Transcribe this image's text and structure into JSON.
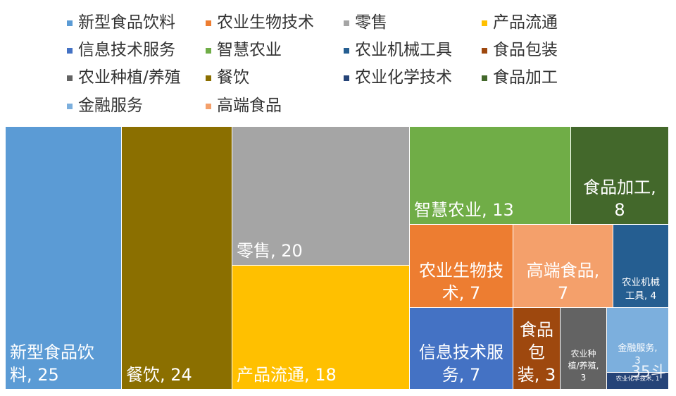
{
  "chart_data": {
    "type": "treemap",
    "legend_position": "top",
    "items": [
      {
        "name": "新型食品饮料",
        "value": 25,
        "color": "#5B9BD5",
        "label_lines": [
          "新型食品饮",
          "料, 25"
        ]
      },
      {
        "name": "餐饮",
        "value": 24,
        "color": "#8B6F00",
        "label_lines": [
          "餐饮, 24"
        ]
      },
      {
        "name": "零售",
        "value": 20,
        "color": "#A5A5A5",
        "label_lines": [
          "零售, 20"
        ]
      },
      {
        "name": "产品流通",
        "value": 18,
        "color": "#FFC000",
        "label_lines": [
          "产品流通, 18"
        ]
      },
      {
        "name": "智慧农业",
        "value": 13,
        "color": "#70AD47",
        "label_lines": [
          "智慧农业, 13"
        ]
      },
      {
        "name": "食品加工",
        "value": 8,
        "color": "#43682B",
        "label_lines": [
          "食品加工,",
          "8"
        ]
      },
      {
        "name": "农业生物技术",
        "value": 7,
        "color": "#ED7D31",
        "label_lines": [
          "农业生物技",
          "术, 7"
        ]
      },
      {
        "name": "高端食品",
        "value": 7,
        "color": "#F4A06B",
        "label_lines": [
          "高端食品,",
          "7"
        ]
      },
      {
        "name": "信息技术服务",
        "value": 7,
        "color": "#4472C4",
        "label_lines": [
          "信息技术服",
          "务, 7"
        ]
      },
      {
        "name": "农业机械工具",
        "value": 4,
        "color": "#255E91",
        "label_lines": [
          "农业机械",
          "工具, 4"
        ]
      },
      {
        "name": "食品包装",
        "value": 3,
        "color": "#9E480E",
        "label_lines": [
          "食品",
          "包",
          "装, 3"
        ]
      },
      {
        "name": "农业种植/养殖",
        "value": 3,
        "color": "#636363",
        "label_lines": [
          "农业种",
          "植/养殖,",
          "3"
        ]
      },
      {
        "name": "金融服务",
        "value": 3,
        "color": "#7CAFDD",
        "label_lines": [
          "金融服务,",
          "3"
        ]
      },
      {
        "name": "农业化学技术",
        "value": 1,
        "color": "#264478",
        "label_lines": [
          "农业化学技术, 1"
        ]
      }
    ],
    "legend": [
      {
        "name": "新型食品饮料",
        "color": "#5B9BD5"
      },
      {
        "name": "农业生物技术",
        "color": "#ED7D31"
      },
      {
        "name": "零售",
        "color": "#A5A5A5"
      },
      {
        "name": "产品流通",
        "color": "#FFC000"
      },
      {
        "name": "信息技术服务",
        "color": "#4472C4"
      },
      {
        "name": "智慧农业",
        "color": "#70AD47"
      },
      {
        "name": "农业机械工具",
        "color": "#255E91"
      },
      {
        "name": "食品包装",
        "color": "#9E480E"
      },
      {
        "name": "农业种植/养殖",
        "color": "#636363"
      },
      {
        "name": "餐饮",
        "color": "#8B6F00"
      },
      {
        "name": "农业化学技术",
        "color": "#264478"
      },
      {
        "name": "食品加工",
        "color": "#43682B"
      },
      {
        "name": "金融服务",
        "color": "#7CAFDD"
      },
      {
        "name": "高端食品",
        "color": "#F4A06B"
      }
    ]
  },
  "watermark": "35斗"
}
